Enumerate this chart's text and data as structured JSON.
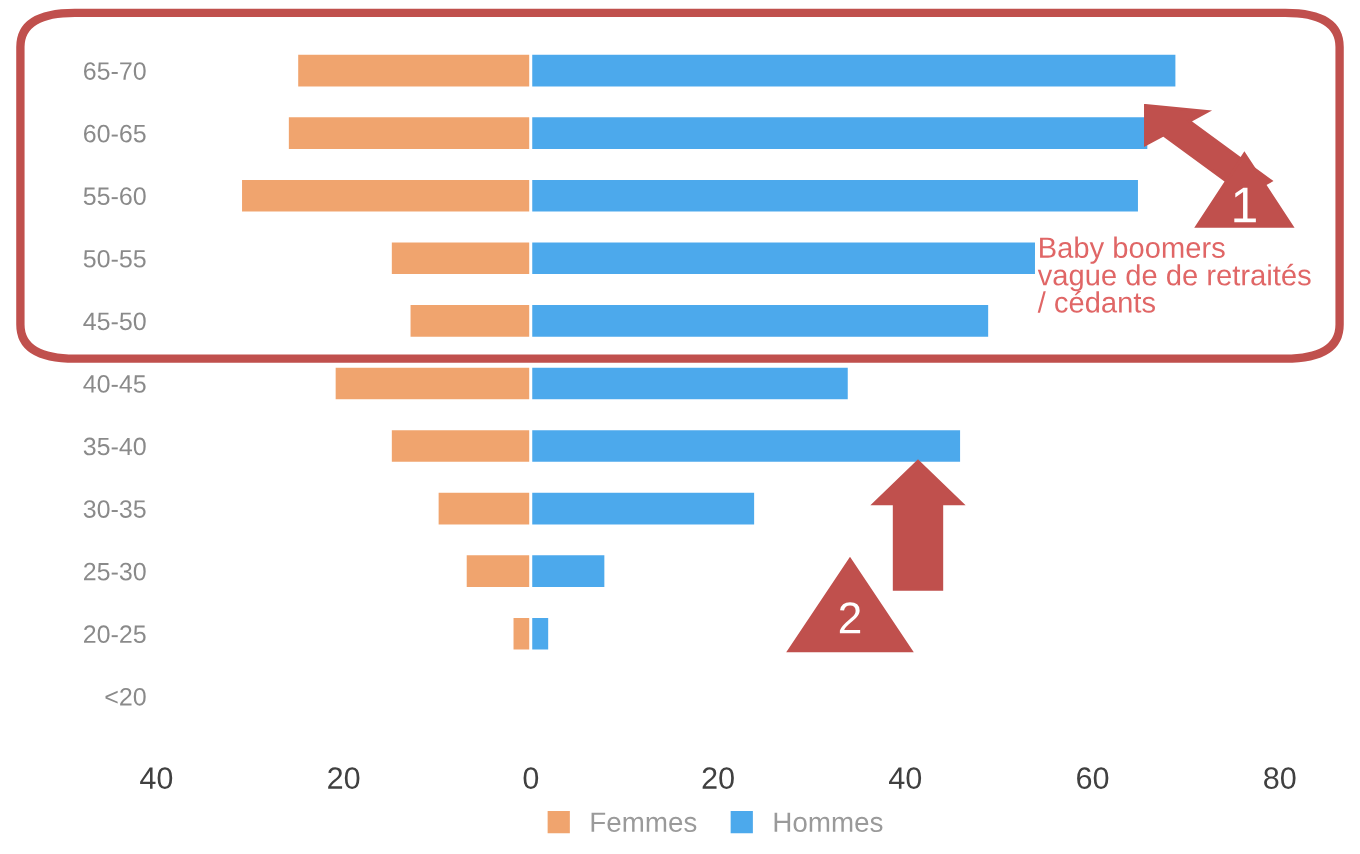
{
  "chart_data": {
    "type": "bar",
    "orientation": "horizontal",
    "categories": [
      "65-70",
      "60-65",
      "55-60",
      "50-55",
      "45-50",
      "40-45",
      "35-40",
      "30-35",
      "25-30",
      "20-25",
      "<20"
    ],
    "series": [
      {
        "name": "Femmes",
        "color": "#f0a46e",
        "values": [
          -25,
          -26,
          -31,
          -15,
          -13,
          -21,
          -15,
          -10,
          -7,
          -2,
          null
        ]
      },
      {
        "name": "Hommes",
        "color": "#4ca9ec",
        "values": [
          69,
          66,
          65,
          54,
          49,
          34,
          46,
          24,
          8,
          2,
          null
        ]
      }
    ],
    "xlim": [
      -40,
      80
    ],
    "xticks": [
      {
        "value": -40,
        "label": "40"
      },
      {
        "value": -20,
        "label": "20"
      },
      0,
      20,
      40,
      60,
      80
    ],
    "annotations": [
      "1",
      "2",
      "Baby boomers\nvague de de retraités\n/ cédants"
    ],
    "stacked": true,
    "legend": "bottom",
    "grid": false
  }
}
